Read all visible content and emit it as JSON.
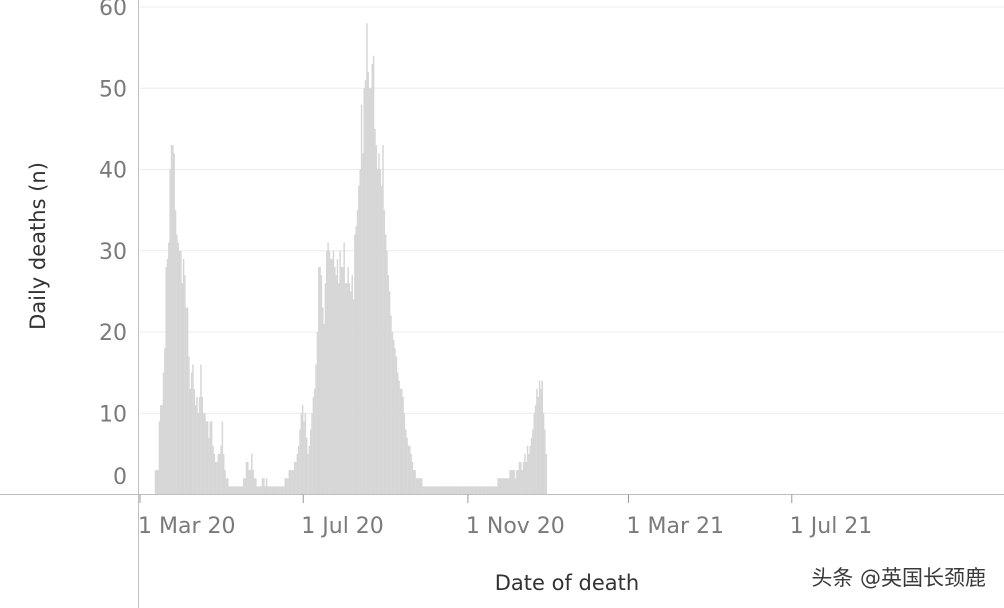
{
  "chart_data": {
    "type": "bar",
    "xlabel": "Date of death",
    "ylabel": "Daily deaths (n)",
    "ylim": [
      0,
      60
    ],
    "yticks": [
      0,
      10,
      20,
      30,
      40,
      50,
      60
    ],
    "xtick_labels": [
      "1 Mar 20",
      "1 Jul 20",
      "1 Nov 20",
      "1 Mar 21",
      "1 Jul 21"
    ],
    "xtick_dates": [
      "2020-03-01",
      "2020-07-01",
      "2020-11-01",
      "2021-03-01",
      "2021-07-01"
    ],
    "start_date": "2020-03-12",
    "grid": "horizontal",
    "bar_color": "#d6d6d6",
    "values": [
      3,
      3,
      3,
      9,
      11,
      11,
      15,
      18,
      28,
      29,
      31,
      40,
      43,
      43,
      42,
      35,
      32,
      31,
      30,
      30,
      26,
      29,
      27,
      23,
      23,
      17,
      13,
      15,
      16,
      13,
      11,
      12,
      10,
      12,
      16,
      12,
      10,
      10,
      9,
      9,
      7,
      9,
      9,
      6,
      5,
      4,
      4,
      5,
      5,
      6,
      9,
      5,
      3,
      2,
      2,
      1,
      1,
      1,
      1,
      1,
      1,
      1,
      1,
      1,
      1,
      1,
      2,
      2,
      4,
      4,
      3,
      3,
      5,
      3,
      2,
      2,
      1,
      1,
      1,
      1,
      2,
      2,
      1,
      2,
      1,
      1,
      1,
      1,
      1,
      1,
      1,
      1,
      1,
      1,
      1,
      1,
      1,
      2,
      2,
      2,
      3,
      3,
      3,
      3,
      4,
      4,
      5,
      6,
      8,
      10,
      11,
      9,
      10,
      7,
      5,
      6,
      8,
      10,
      12,
      13,
      16,
      20,
      28,
      28,
      27,
      23,
      21,
      26,
      30,
      31,
      30,
      29,
      29,
      30,
      28,
      27,
      29,
      26,
      30,
      28,
      28,
      31,
      26,
      26,
      28,
      26,
      25,
      27,
      24,
      32,
      33,
      35,
      38,
      40,
      48,
      42,
      50,
      51,
      58,
      52,
      50,
      50,
      53,
      54,
      45,
      43,
      40,
      42,
      40,
      38,
      43,
      35,
      32,
      30,
      27,
      25,
      22,
      20,
      19,
      18,
      17,
      15,
      14,
      13,
      13,
      12,
      10,
      8,
      7,
      6,
      6,
      5,
      4,
      3,
      3,
      2,
      2,
      2,
      2,
      2,
      1,
      1,
      1,
      1,
      1,
      1,
      1,
      1,
      1,
      1,
      1,
      1,
      1,
      1,
      1,
      1,
      1,
      1,
      1,
      1,
      1,
      1,
      1,
      1,
      1,
      1,
      1,
      1,
      1,
      1,
      1,
      1,
      1,
      1,
      1,
      1,
      1,
      1,
      1,
      1,
      1,
      1,
      1,
      1,
      1,
      1,
      1,
      1,
      1,
      1,
      1,
      1,
      1,
      1,
      1,
      1,
      2,
      2,
      2,
      2,
      2,
      2,
      2,
      2,
      2,
      3,
      3,
      3,
      3,
      2,
      3,
      3,
      4,
      4,
      3,
      4,
      5,
      4,
      6,
      5,
      6,
      7,
      8,
      10,
      11,
      13,
      12,
      14,
      13,
      14,
      10,
      8,
      5
    ]
  },
  "watermark": "头条 @英国长颈鹿"
}
